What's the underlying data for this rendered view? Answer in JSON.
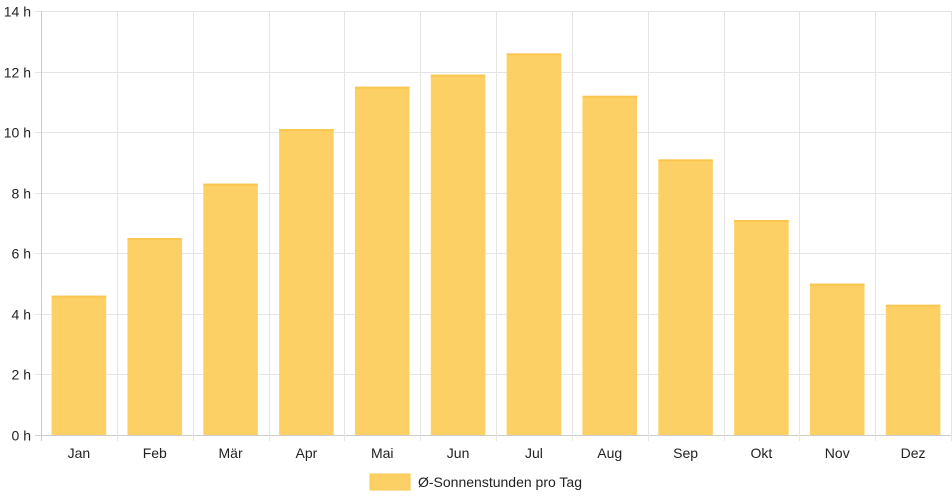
{
  "chart_data": {
    "type": "bar",
    "categories": [
      "Jan",
      "Feb",
      "Mär",
      "Apr",
      "Mai",
      "Jun",
      "Jul",
      "Aug",
      "Sep",
      "Okt",
      "Nov",
      "Dez"
    ],
    "series": [
      {
        "name": "Ø-Sonnenstunden pro Tag",
        "values": [
          4.6,
          6.5,
          8.3,
          10.1,
          11.5,
          11.9,
          12.6,
          11.2,
          9.1,
          7.1,
          5.0,
          4.3
        ]
      }
    ],
    "y_ticks": [
      "0 h",
      "2 h",
      "4 h",
      "6 h",
      "8 h",
      "10 h",
      "12 h",
      "14 h"
    ],
    "ylim": [
      0,
      14
    ],
    "y_unit": "h",
    "grid": true,
    "legend_position": "bottom",
    "colors": {
      "bar_fill": "#fdd066",
      "bar_border": "#f9c74f",
      "grid": "#e5e5e5",
      "axis": "#cccccc",
      "text": "#222222"
    }
  }
}
